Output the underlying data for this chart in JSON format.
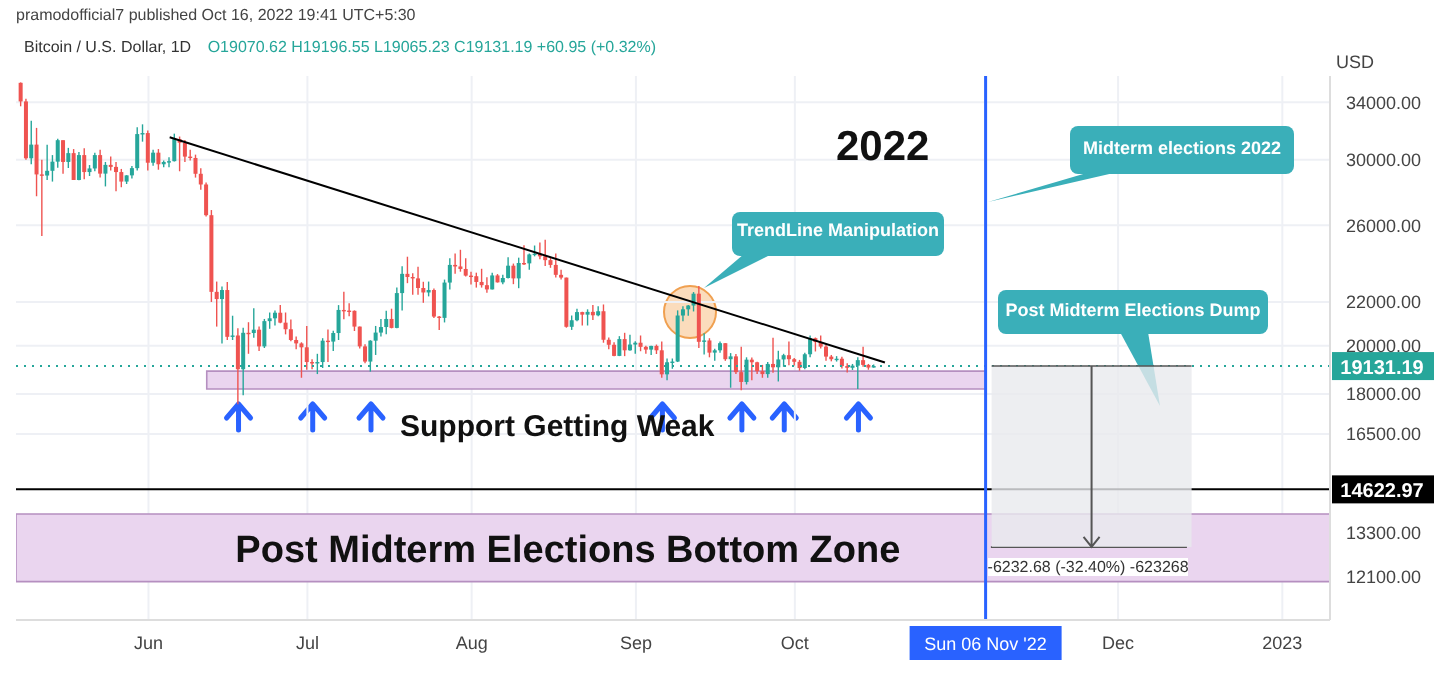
{
  "chart_data": {
    "type": "candlestick",
    "title": "Bitcoin / U.S. Dollar, 1D",
    "subtitle": "O19070.62 H19196.55 L19065.23 C19131.19 +60.95 (+0.32%)",
    "ylabel": "USD",
    "annotations": [
      "pramodofficial7 published Oct 16, 2022 19:41 UTC+5:30",
      "2022",
      "TrendLine Manipulation",
      "Midterm elections 2022",
      "Post Midterm Elections Dump",
      {
        "text": "-6232.68 (-32.40%) -623268",
        "x": "2022-11-26",
        "y": 12898.51
      },
      "Support Getting Weak"
    ],
    "colors": [
      "#ef5350",
      "#ef5350",
      "#26a69a",
      "#ef5350",
      "#ef5350",
      "#26a69a",
      "#26a69a",
      "#26a69a",
      "#ef5350",
      "#26a69a",
      "#ef5350",
      "#26a69a",
      "#ef5350",
      "#26a69a",
      "#26a69a",
      "#ef5350",
      "#26a69a",
      "#ef5350",
      "#ef5350",
      "#ef5350",
      "#26a69a",
      "#26a69a",
      "#26a69a",
      "#26a69a",
      "#ef5350",
      "#26a69a",
      "#ef5350",
      "#26a69a",
      "#26a69a",
      "#26a69a",
      "#ef5350",
      "#ef5350",
      "#ef5350",
      "#ef5350",
      "#ef5350",
      "#ef5350",
      "#ef5350",
      "#ef5350",
      "#26a69a",
      "#ef5350",
      "#26a69a",
      "#ef5350",
      "#26a69a",
      "#ef5350",
      "#26a69a",
      "#ef5350",
      "#26a69a",
      "#26a69a",
      "#26a69a",
      "#ef5350",
      "#ef5350",
      "#ef5350",
      "#ef5350",
      "#ef5350",
      "#ef5350",
      "#ef5350",
      "#26a69a",
      "#26a69a",
      "#ef5350",
      "#26a69a",
      "#26a69a",
      "#ef5350",
      "#ef5350",
      "#ef5350",
      "#ef5350",
      "#ef5350",
      "#26a69a",
      "#26a69a",
      "#26a69a",
      "#26a69a",
      "#ef5350",
      "#26a69a",
      "#26a69a",
      "#ef5350",
      "#ef5350",
      "#ef5350",
      "#ef5350",
      "#26a69a",
      "#ef5350",
      "#ef5350",
      "#26a69a",
      "#26a69a",
      "#ef5350",
      "#ef5350",
      "#ef5350",
      "#ef5350",
      "#ef5350",
      "#ef5350",
      "#ef5350",
      "#26a69a",
      "#ef5350",
      "#26a69a",
      "#26a69a",
      "#ef5350",
      "#26a69a",
      "#ef5350",
      "#26a69a",
      "#26a69a",
      "#ef5350",
      "#ef5350",
      "#ef5350",
      "#ef5350",
      "#ef5350",
      "#ef5350",
      "#26a69a",
      "#26a69a",
      "#ef5350",
      "#26a69a",
      "#ef5350",
      "#26a69a",
      "#ef5350",
      "#ef5350",
      "#ef5350",
      "#26a69a",
      "#ef5350",
      "#26a69a",
      "#26a69a",
      "#ef5350",
      "#ef5350",
      "#26a69a",
      "#ef5350",
      "#ef5350",
      "#26a69a",
      "#26a69a",
      "#26a69a",
      "#26a69a",
      "#26a69a",
      "#26a69a",
      "#ef5350",
      "#26a69a",
      "#ef5350",
      "#26a69a",
      "#26a69a",
      "#ef5350",
      "#26a69a",
      "#ef5350",
      "#ef5350",
      "#26a69a",
      "#ef5350",
      "#ef5350",
      "#ef5350",
      "#26a69a",
      "#ef5350",
      "#26a69a",
      "#26a69a",
      "#ef5350",
      "#ef5350",
      "#ef5350",
      "#26a69a",
      "#26a69a",
      "#ef5350",
      "#ef5350",
      "#ef5350",
      "#ef5350",
      "#26a69a",
      "#ef5350",
      "#ef5350",
      "#26a69a",
      "#26a69a",
      "#ef5350",
      "#ef5350",
      "#26a69a"
    ],
    "log": "y",
    "grid": true,
    "xlim": [
      "2022-05-07",
      "2023-01-10"
    ],
    "xticks": [
      {
        "value": "2022-06-01",
        "label": "Jun"
      },
      {
        "value": "2022-07-01",
        "label": "Jul"
      },
      {
        "value": "2022-08-01",
        "label": "Aug"
      },
      {
        "value": "2022-09-01",
        "label": "Sep"
      },
      {
        "value": "2022-10-01",
        "label": "Oct"
      },
      {
        "value": "2022-12-01",
        "label": "Dec"
      },
      {
        "value": "2023-01-01",
        "label": "2023"
      }
    ],
    "ylim": [
      11000,
      36000
    ],
    "yticks": [
      {
        "value": 12100,
        "label": "12100.00"
      },
      {
        "value": 13300,
        "label": "13300.00"
      },
      {
        "value": 16500,
        "label": "16500.00"
      },
      {
        "value": 18000,
        "label": "18000.00"
      },
      {
        "value": 20000,
        "label": "20000.00"
      },
      {
        "value": 22000,
        "label": "22000.00"
      },
      {
        "value": 26000,
        "label": "26000.00"
      },
      {
        "value": 30000,
        "label": "30000.00"
      },
      {
        "value": 34000,
        "label": "34000.00"
      }
    ],
    "ref_lines": [
      {
        "axis": "y",
        "value": 14622.97,
        "label": "14622.97",
        "color": "#000000",
        "line_style": "solid"
      },
      {
        "axis": "y",
        "value": 19131.19,
        "label": "19131.19",
        "color": "#26a69a",
        "line_style": "dotted"
      },
      {
        "axis": "x",
        "value": "2022-11-06",
        "label": "Sun 06 Nov '22",
        "color": "#2962ff",
        "line_style": "solid"
      },
      {
        "axis": "y",
        "value": 12898.51,
        "color": "#555555",
        "line_style": "solid"
      }
    ],
    "bands": [
      {
        "axis": "y",
        "from": 11960,
        "to": 13860,
        "label": "Post Midterm Elections Bottom Zone",
        "color": "#ead5ef"
      },
      {
        "axis": "y",
        "from": 18200,
        "to": 18920,
        "color": "#ead5ef"
      }
    ],
    "series": [
      {
        "type": "line",
        "color": "#000000",
        "x": [
          "2022-06-05",
          "2022-10-18"
        ],
        "values": [
          31500,
          19280
        ]
      }
    ],
    "x": [
      "2022-05-08",
      "2022-05-09",
      "2022-05-10",
      "2022-05-11",
      "2022-05-12",
      "2022-05-13",
      "2022-05-14",
      "2022-05-15",
      "2022-05-16",
      "2022-05-17",
      "2022-05-18",
      "2022-05-19",
      "2022-05-20",
      "2022-05-21",
      "2022-05-22",
      "2022-05-23",
      "2022-05-24",
      "2022-05-25",
      "2022-05-26",
      "2022-05-27",
      "2022-05-28",
      "2022-05-29",
      "2022-05-30",
      "2022-05-31",
      "2022-06-01",
      "2022-06-02",
      "2022-06-03",
      "2022-06-04",
      "2022-06-05",
      "2022-06-06",
      "2022-06-07",
      "2022-06-08",
      "2022-06-09",
      "2022-06-10",
      "2022-06-11",
      "2022-06-12",
      "2022-06-13",
      "2022-06-14",
      "2022-06-15",
      "2022-06-16",
      "2022-06-17",
      "2022-06-18",
      "2022-06-19",
      "2022-06-20",
      "2022-06-21",
      "2022-06-22",
      "2022-06-23",
      "2022-06-24",
      "2022-06-25",
      "2022-06-26",
      "2022-06-27",
      "2022-06-28",
      "2022-06-29",
      "2022-06-30",
      "2022-07-01",
      "2022-07-02",
      "2022-07-03",
      "2022-07-04",
      "2022-07-05",
      "2022-07-06",
      "2022-07-07",
      "2022-07-08",
      "2022-07-09",
      "2022-07-10",
      "2022-07-11",
      "2022-07-12",
      "2022-07-13",
      "2022-07-14",
      "2022-07-15",
      "2022-07-16",
      "2022-07-17",
      "2022-07-18",
      "2022-07-19",
      "2022-07-20",
      "2022-07-21",
      "2022-07-22",
      "2022-07-23",
      "2022-07-24",
      "2022-07-25",
      "2022-07-26",
      "2022-07-27",
      "2022-07-28",
      "2022-07-29",
      "2022-07-30",
      "2022-07-31",
      "2022-08-01",
      "2022-08-02",
      "2022-08-03",
      "2022-08-04",
      "2022-08-05",
      "2022-08-06",
      "2022-08-07",
      "2022-08-08",
      "2022-08-09",
      "2022-08-10",
      "2022-08-11",
      "2022-08-12",
      "2022-08-13",
      "2022-08-14",
      "2022-08-15",
      "2022-08-16",
      "2022-08-17",
      "2022-08-18",
      "2022-08-19",
      "2022-08-20",
      "2022-08-21",
      "2022-08-22",
      "2022-08-23",
      "2022-08-24",
      "2022-08-25",
      "2022-08-26",
      "2022-08-27",
      "2022-08-28",
      "2022-08-29",
      "2022-08-30",
      "2022-08-31",
      "2022-09-01",
      "2022-09-02",
      "2022-09-03",
      "2022-09-04",
      "2022-09-05",
      "2022-09-06",
      "2022-09-07",
      "2022-09-08",
      "2022-09-09",
      "2022-09-10",
      "2022-09-11",
      "2022-09-12",
      "2022-09-13",
      "2022-09-14",
      "2022-09-15",
      "2022-09-16",
      "2022-09-17",
      "2022-09-18",
      "2022-09-19",
      "2022-09-20",
      "2022-09-21",
      "2022-09-22",
      "2022-09-23",
      "2022-09-24",
      "2022-09-25",
      "2022-09-26",
      "2022-09-27",
      "2022-09-28",
      "2022-09-29",
      "2022-09-30",
      "2022-10-01",
      "2022-10-02",
      "2022-10-03",
      "2022-10-04",
      "2022-10-05",
      "2022-10-06",
      "2022-10-07",
      "2022-10-08",
      "2022-10-09",
      "2022-10-10",
      "2022-10-11",
      "2022-10-12",
      "2022-10-13",
      "2022-10-14",
      "2022-10-15",
      "2022-10-16"
    ],
    "ohlc": [
      [
        35470,
        35500,
        33700,
        34060
      ],
      [
        34060,
        34250,
        30000,
        30090
      ],
      [
        30090,
        32650,
        29700,
        31000
      ],
      [
        31000,
        32150,
        27700,
        29050
      ],
      [
        29050,
        30000,
        25400,
        28980
      ],
      [
        28980,
        30990,
        28700,
        29280
      ],
      [
        29280,
        30300,
        28600,
        29870
      ],
      [
        29870,
        31400,
        29480,
        31300
      ],
      [
        31300,
        31300,
        29100,
        29850
      ],
      [
        29850,
        30780,
        29460,
        30430
      ],
      [
        30430,
        30700,
        28700,
        28700
      ],
      [
        28700,
        30500,
        28680,
        30300
      ],
      [
        30300,
        30750,
        28750,
        29200
      ],
      [
        29200,
        29650,
        28950,
        29430
      ],
      [
        29430,
        30450,
        29250,
        30300
      ],
      [
        30300,
        30650,
        28850,
        29100
      ],
      [
        29100,
        29850,
        28300,
        29660
      ],
      [
        29660,
        30200,
        29300,
        29530
      ],
      [
        29530,
        29850,
        28000,
        29200
      ],
      [
        29200,
        29400,
        28250,
        28600
      ],
      [
        28600,
        29000,
        28450,
        28990
      ],
      [
        28990,
        29580,
        28800,
        29450
      ],
      [
        29450,
        32200,
        29300,
        31720
      ],
      [
        31720,
        32400,
        31200,
        31790
      ],
      [
        31790,
        31960,
        29300,
        29800
      ],
      [
        29800,
        30650,
        29600,
        30460
      ],
      [
        30460,
        30700,
        29350,
        29700
      ],
      [
        29700,
        29950,
        29500,
        29850
      ],
      [
        29850,
        30150,
        29500,
        29900
      ],
      [
        29900,
        31750,
        29880,
        31370
      ],
      [
        31370,
        31550,
        29250,
        31130
      ],
      [
        31130,
        31320,
        29850,
        30200
      ],
      [
        30200,
        30650,
        29950,
        30110
      ],
      [
        30110,
        30330,
        28850,
        29090
      ],
      [
        29090,
        29450,
        28100,
        28420
      ],
      [
        28420,
        28550,
        26500,
        26580
      ],
      [
        26580,
        26880,
        22000,
        22490
      ],
      [
        22490,
        23000,
        20850,
        22140
      ],
      [
        22140,
        22750,
        20100,
        22580
      ],
      [
        22580,
        22980,
        20250,
        20390
      ],
      [
        20390,
        21350,
        20250,
        20450
      ],
      [
        20450,
        20780,
        17600,
        19000
      ],
      [
        19000,
        20800,
        17950,
        20570
      ],
      [
        20570,
        21050,
        19650,
        20560
      ],
      [
        20560,
        21700,
        20350,
        20710
      ],
      [
        20710,
        20860,
        19770,
        19970
      ],
      [
        19970,
        21200,
        19900,
        21100
      ],
      [
        21100,
        21500,
        20750,
        21230
      ],
      [
        21230,
        21600,
        20900,
        21490
      ],
      [
        21490,
        21850,
        21000,
        21030
      ],
      [
        21030,
        21500,
        20500,
        20730
      ],
      [
        20730,
        21180,
        20200,
        20250
      ],
      [
        20250,
        20400,
        19850,
        20100
      ],
      [
        20100,
        20150,
        18650,
        19930
      ],
      [
        19930,
        20880,
        18980,
        19300
      ],
      [
        19300,
        19420,
        19000,
        19240
      ],
      [
        19240,
        19650,
        18800,
        19300
      ],
      [
        19300,
        20330,
        19050,
        20220
      ],
      [
        20220,
        20720,
        19300,
        20180
      ],
      [
        20180,
        20660,
        19770,
        20560
      ],
      [
        20560,
        21850,
        20250,
        21620
      ],
      [
        21620,
        22500,
        21190,
        21590
      ],
      [
        21590,
        21940,
        21320,
        21580
      ],
      [
        21580,
        21600,
        20650,
        20850
      ],
      [
        20850,
        20860,
        19880,
        19970
      ],
      [
        19970,
        20060,
        19250,
        19320
      ],
      [
        19320,
        20240,
        18900,
        20220
      ],
      [
        20220,
        20880,
        19600,
        20580
      ],
      [
        20580,
        21200,
        20400,
        20830
      ],
      [
        20830,
        21580,
        20500,
        21200
      ],
      [
        21200,
        21680,
        20770,
        20790
      ],
      [
        20790,
        22700,
        20770,
        22430
      ],
      [
        22430,
        23780,
        21600,
        23390
      ],
      [
        23390,
        24280,
        22920,
        23230
      ],
      [
        23230,
        23420,
        22350,
        23160
      ],
      [
        23160,
        23750,
        22350,
        22680
      ],
      [
        22680,
        22990,
        21960,
        22460
      ],
      [
        22460,
        23000,
        22270,
        22580
      ],
      [
        22580,
        22650,
        21250,
        21310
      ],
      [
        21310,
        21340,
        20700,
        21250
      ],
      [
        21250,
        23100,
        21040,
        22950
      ],
      [
        22950,
        24200,
        22600,
        23850
      ],
      [
        23850,
        24450,
        23400,
        23770
      ],
      [
        23770,
        24650,
        23500,
        23640
      ],
      [
        23640,
        24200,
        23250,
        23300
      ],
      [
        23300,
        23500,
        22850,
        23270
      ],
      [
        23270,
        23450,
        22700,
        22980
      ],
      [
        22980,
        23650,
        22700,
        22820
      ],
      [
        22820,
        23220,
        22450,
        22610
      ],
      [
        22610,
        23450,
        22600,
        23310
      ],
      [
        23310,
        23380,
        22950,
        22960
      ],
      [
        22960,
        23350,
        22860,
        23180
      ],
      [
        23180,
        24250,
        23150,
        23810
      ],
      [
        23810,
        23920,
        22870,
        23160
      ],
      [
        23160,
        24230,
        22670,
        23950
      ],
      [
        23950,
        24900,
        23850,
        23930
      ],
      [
        23930,
        24450,
        23600,
        24400
      ],
      [
        24400,
        24880,
        24300,
        24440
      ],
      [
        24440,
        25050,
        24150,
        24300
      ],
      [
        24300,
        25200,
        23800,
        24100
      ],
      [
        24100,
        24250,
        23700,
        23850
      ],
      [
        23850,
        24450,
        23200,
        23340
      ],
      [
        23340,
        23600,
        23100,
        23200
      ],
      [
        23200,
        23200,
        20800,
        20840
      ],
      [
        20840,
        21360,
        20700,
        21140
      ],
      [
        21140,
        21680,
        21100,
        21520
      ],
      [
        21520,
        21530,
        20900,
        21400
      ],
      [
        21400,
        21650,
        20900,
        21530
      ],
      [
        21530,
        21850,
        21150,
        21370
      ],
      [
        21370,
        21800,
        21320,
        21560
      ],
      [
        21560,
        21880,
        20130,
        20260
      ],
      [
        20260,
        20360,
        19850,
        20040
      ],
      [
        20040,
        20150,
        19550,
        19560
      ],
      [
        19560,
        20420,
        19550,
        20290
      ],
      [
        20290,
        20570,
        19550,
        19800
      ],
      [
        19800,
        20480,
        19780,
        20050
      ],
      [
        20050,
        20200,
        19650,
        20130
      ],
      [
        20130,
        20450,
        19760,
        19950
      ],
      [
        19950,
        20000,
        19650,
        19830
      ],
      [
        19830,
        20000,
        19600,
        19990
      ],
      [
        19990,
        20050,
        19640,
        19800
      ],
      [
        19800,
        20180,
        18650,
        18790
      ],
      [
        18790,
        19450,
        18550,
        19290
      ],
      [
        19290,
        19450,
        19020,
        19320
      ],
      [
        19320,
        21600,
        19300,
        21360
      ],
      [
        21360,
        21800,
        21100,
        21650
      ],
      [
        21650,
        21850,
        21350,
        21830
      ],
      [
        21830,
        22480,
        21550,
        22400
      ],
      [
        22400,
        22780,
        19900,
        20170
      ],
      [
        20170,
        20550,
        19620,
        20230
      ],
      [
        20230,
        20330,
        19500,
        19700
      ],
      [
        19700,
        19870,
        19350,
        19800
      ],
      [
        19800,
        20180,
        19700,
        20110
      ],
      [
        20110,
        20110,
        19350,
        19420
      ],
      [
        19420,
        19680,
        18250,
        19540
      ],
      [
        19540,
        19640,
        18800,
        18880
      ],
      [
        18880,
        19950,
        18150,
        18480
      ],
      [
        18480,
        19500,
        18380,
        19400
      ],
      [
        19400,
        19490,
        18550,
        19290
      ],
      [
        19290,
        19310,
        18800,
        18920
      ],
      [
        18920,
        19180,
        18650,
        18800
      ],
      [
        18800,
        19300,
        18650,
        19220
      ],
      [
        19220,
        20350,
        18850,
        19080
      ],
      [
        19080,
        19780,
        18500,
        19410
      ],
      [
        19410,
        19650,
        19100,
        19590
      ],
      [
        19590,
        20180,
        19170,
        19420
      ],
      [
        19420,
        19470,
        19160,
        19310
      ],
      [
        19310,
        19390,
        18940,
        19050
      ],
      [
        19050,
        19700,
        19000,
        19630
      ],
      [
        19630,
        20450,
        19500,
        20330
      ],
      [
        20330,
        20360,
        19750,
        20160
      ],
      [
        20160,
        20450,
        19880,
        19960
      ],
      [
        19960,
        20050,
        19350,
        19530
      ],
      [
        19530,
        19600,
        19330,
        19420
      ],
      [
        19420,
        19550,
        19320,
        19440
      ],
      [
        19440,
        19520,
        19030,
        19130
      ],
      [
        19130,
        19250,
        18870,
        19060
      ],
      [
        19060,
        19220,
        18970,
        19150
      ],
      [
        19150,
        19500,
        18200,
        19380
      ],
      [
        19380,
        19950,
        19100,
        19180
      ],
      [
        19180,
        19220,
        18980,
        19070
      ],
      [
        19070.62,
        19196.55,
        19065.23,
        19131.19
      ]
    ]
  }
}
